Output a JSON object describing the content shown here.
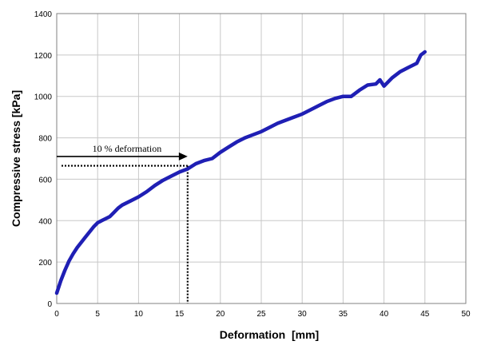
{
  "chart_data": {
    "type": "line",
    "title": "",
    "xlabel": "Deformation  [mm]",
    "ylabel": "Compressive stress [kPa]",
    "xlim": [
      0,
      50
    ],
    "ylim": [
      0,
      1400
    ],
    "xticks": [
      "0",
      "5",
      "10",
      "15",
      "20",
      "25",
      "30",
      "35",
      "40",
      "45",
      "50"
    ],
    "yticks": [
      "0",
      "200",
      "400",
      "600",
      "800",
      "1000",
      "1200",
      "1400"
    ],
    "grid": true,
    "legend": "none",
    "series_color": "#1f1fb4",
    "series": [
      {
        "x": [
          0,
          0.5,
          1,
          1.5,
          2,
          2.5,
          3,
          3.5,
          4,
          4.5,
          5,
          5.5,
          6,
          6.5,
          7,
          7.5,
          8,
          9,
          10,
          11,
          12,
          13,
          14,
          15,
          16,
          17,
          18,
          19,
          20,
          21,
          22,
          23,
          24,
          25,
          26,
          27,
          28,
          29,
          30,
          31,
          32,
          33,
          34,
          35,
          36,
          37,
          38,
          39,
          39.5,
          40,
          41,
          42,
          43,
          44,
          44.5,
          45
        ],
        "y": [
          50,
          110,
          160,
          205,
          240,
          270,
          295,
          320,
          345,
          370,
          390,
          400,
          410,
          420,
          440,
          460,
          475,
          495,
          515,
          540,
          570,
          595,
          615,
          635,
          650,
          675,
          690,
          700,
          730,
          755,
          780,
          800,
          815,
          830,
          850,
          870,
          885,
          900,
          915,
          935,
          955,
          975,
          990,
          1000,
          1000,
          1030,
          1055,
          1060,
          1080,
          1050,
          1090,
          1120,
          1140,
          1160,
          1200,
          1215
        ]
      }
    ],
    "annotation": {
      "label": "10 % deformation",
      "x": 16,
      "y": 665,
      "arrow_y": 710
    }
  }
}
